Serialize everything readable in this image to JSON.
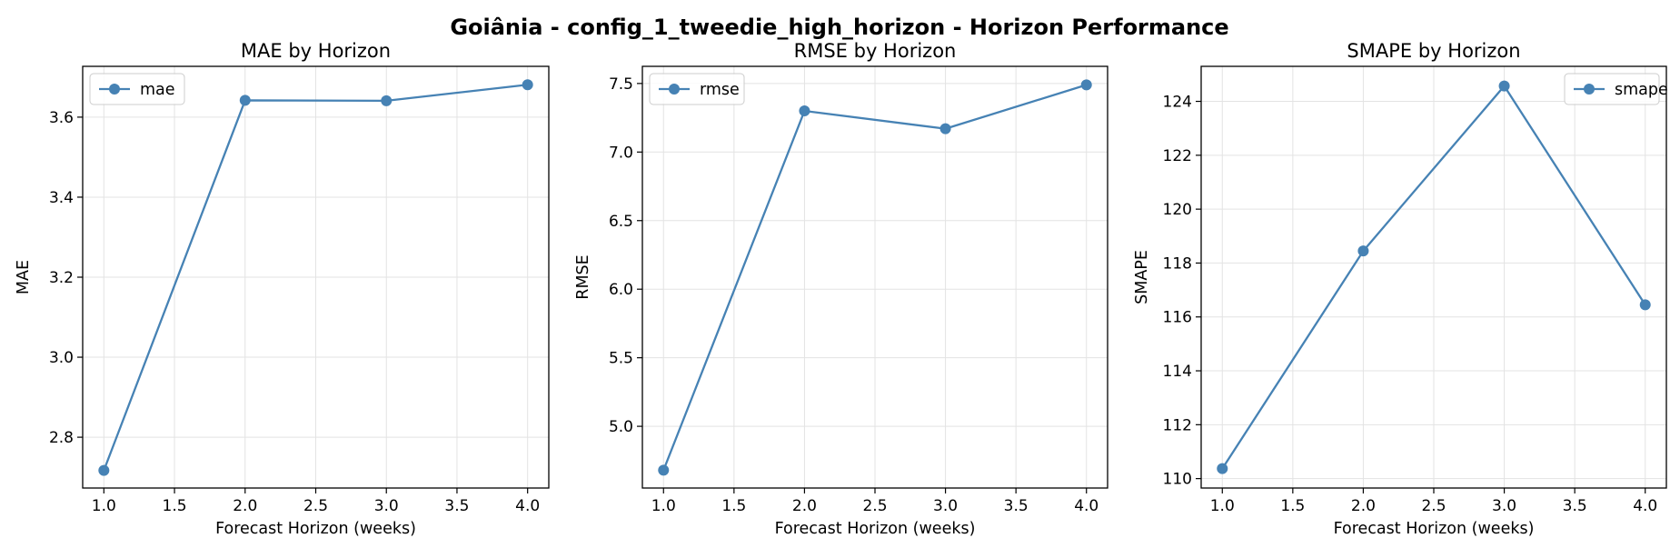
{
  "figure": {
    "suptitle": "Goiânia - config_1_tweedie_high_horizon - Horizon Performance"
  },
  "colors": {
    "line": "#4682b4",
    "grid": "#e3e3e3",
    "axes": "#000000",
    "background": "#ffffff"
  },
  "chart_data": [
    {
      "type": "line",
      "title": "MAE by Horizon",
      "xlabel": "Forecast Horizon (weeks)",
      "ylabel": "MAE",
      "xlim": [
        0.85,
        4.15
      ],
      "ylim": [
        2.673,
        3.727
      ],
      "xticks": [
        1.0,
        1.5,
        2.0,
        2.5,
        3.0,
        3.5,
        4.0
      ],
      "xtick_labels": [
        "1.0",
        "1.5",
        "2.0",
        "2.5",
        "3.0",
        "3.5",
        "4.0"
      ],
      "yticks": [
        2.8,
        3.0,
        3.2,
        3.4,
        3.6
      ],
      "ytick_labels": [
        "2.8",
        "3.0",
        "3.2",
        "3.4",
        "3.6"
      ],
      "grid": true,
      "legend_position": "upper left",
      "series": [
        {
          "name": "mae",
          "x": [
            1,
            2,
            3,
            4
          ],
          "values": [
            2.717,
            3.642,
            3.641,
            3.681
          ]
        }
      ]
    },
    {
      "type": "line",
      "title": "RMSE by Horizon",
      "xlabel": "Forecast Horizon (weeks)",
      "ylabel": "RMSE",
      "xlim": [
        0.85,
        4.15
      ],
      "ylim": [
        4.55,
        7.625
      ],
      "xticks": [
        1.0,
        1.5,
        2.0,
        2.5,
        3.0,
        3.5,
        4.0
      ],
      "xtick_labels": [
        "1.0",
        "1.5",
        "2.0",
        "2.5",
        "3.0",
        "3.5",
        "4.0"
      ],
      "yticks": [
        5.0,
        5.5,
        6.0,
        6.5,
        7.0,
        7.5
      ],
      "ytick_labels": [
        "5.0",
        "5.5",
        "6.0",
        "6.5",
        "7.0",
        "7.5"
      ],
      "grid": true,
      "legend_position": "upper left",
      "series": [
        {
          "name": "rmse",
          "x": [
            1,
            2,
            3,
            4
          ],
          "values": [
            4.68,
            7.3,
            7.17,
            7.49
          ]
        }
      ]
    },
    {
      "type": "line",
      "title": "SMAPE by Horizon",
      "xlabel": "Forecast Horizon (weeks)",
      "ylabel": "SMAPE",
      "xlim": [
        0.85,
        4.15
      ],
      "ylim": [
        109.65,
        125.3
      ],
      "xticks": [
        1.0,
        1.5,
        2.0,
        2.5,
        3.0,
        3.5,
        4.0
      ],
      "xtick_labels": [
        "1.0",
        "1.5",
        "2.0",
        "2.5",
        "3.0",
        "3.5",
        "4.0"
      ],
      "yticks": [
        110,
        112,
        114,
        116,
        118,
        120,
        122,
        124
      ],
      "ytick_labels": [
        "110",
        "112",
        "114",
        "116",
        "118",
        "120",
        "122",
        "124"
      ],
      "grid": true,
      "legend_position": "upper right",
      "series": [
        {
          "name": "smape",
          "x": [
            1,
            2,
            3,
            4
          ],
          "values": [
            110.37,
            118.45,
            124.57,
            116.45
          ]
        }
      ]
    }
  ]
}
